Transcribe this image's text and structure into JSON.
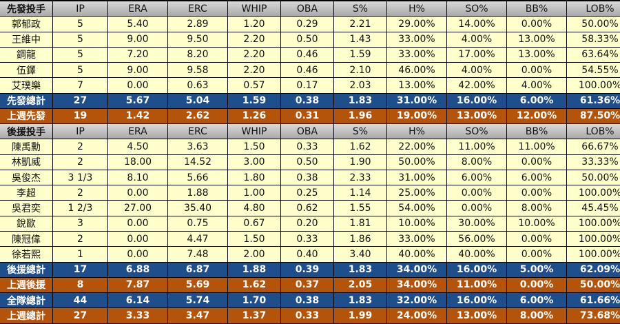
{
  "columns": [
    "IP",
    "ERA",
    "ERC",
    "WHIP",
    "OBA",
    "S%",
    "H%",
    "SO%",
    "BB%",
    "LOB%"
  ],
  "rows": [
    {
      "type": "header",
      "name": "先發投手",
      "values": [
        "IP",
        "ERA",
        "ERC",
        "WHIP",
        "OBA",
        "S%",
        "H%",
        "SO%",
        "BB%",
        "LOB%"
      ]
    },
    {
      "type": "data",
      "name": "郭郁政",
      "values": [
        "5",
        "5.40",
        "2.89",
        "1.20",
        "0.29",
        "2.21",
        "29.00%",
        "14.00%",
        "0.00%",
        "50.00%"
      ]
    },
    {
      "type": "data",
      "name": "王維中",
      "values": [
        "5",
        "9.00",
        "9.50",
        "2.20",
        "0.50",
        "1.43",
        "33.00%",
        "4.00%",
        "13.00%",
        "58.33%"
      ]
    },
    {
      "type": "data",
      "name": "鋼龍",
      "values": [
        "5",
        "7.20",
        "8.20",
        "2.20",
        "0.46",
        "1.59",
        "33.00%",
        "17.00%",
        "13.00%",
        "63.64%"
      ]
    },
    {
      "type": "data",
      "name": "伍鐸",
      "values": [
        "5",
        "9.00",
        "9.58",
        "2.20",
        "0.46",
        "2.10",
        "46.00%",
        "4.00%",
        "0.00%",
        "54.55%"
      ]
    },
    {
      "type": "data",
      "name": "艾璞樂",
      "values": [
        "7",
        "0.00",
        "0.63",
        "0.57",
        "0.17",
        "2.03",
        "13.00%",
        "42.00%",
        "4.00%",
        "100.00%"
      ]
    },
    {
      "type": "blue",
      "name": "先發總計",
      "values": [
        "27",
        "5.67",
        "5.04",
        "1.59",
        "0.38",
        "1.83",
        "31.00%",
        "16.00%",
        "6.00%",
        "61.36%"
      ]
    },
    {
      "type": "orange",
      "name": "上週先發",
      "values": [
        "19",
        "1.42",
        "2.62",
        "1.26",
        "0.31",
        "1.96",
        "19.00%",
        "13.00%",
        "12.00%",
        "87.50%"
      ]
    },
    {
      "type": "header",
      "name": "後援投手",
      "values": [
        "IP",
        "ERA",
        "ERC",
        "WHIP",
        "OBA",
        "S%",
        "H%",
        "SO%",
        "BB%",
        "LOB%"
      ]
    },
    {
      "type": "data",
      "name": "陳禹勳",
      "values": [
        "2",
        "4.50",
        "3.63",
        "1.50",
        "0.33",
        "1.62",
        "22.00%",
        "11.00%",
        "11.00%",
        "66.67%"
      ]
    },
    {
      "type": "data",
      "name": "林凱威",
      "values": [
        "2",
        "18.00",
        "14.52",
        "3.00",
        "0.50",
        "1.90",
        "50.00%",
        "8.00%",
        "0.00%",
        "33.33%"
      ]
    },
    {
      "type": "data",
      "name": "吳俊杰",
      "values": [
        "3 1/3",
        "8.10",
        "5.66",
        "1.80",
        "0.38",
        "2.33",
        "31.00%",
        "6.00%",
        "6.00%",
        "50.00%"
      ]
    },
    {
      "type": "data",
      "name": "李超",
      "values": [
        "2",
        "0.00",
        "1.88",
        "1.00",
        "0.25",
        "1.14",
        "25.00%",
        "0.00%",
        "0.00%",
        "100.00%"
      ]
    },
    {
      "type": "data",
      "name": "吳君奕",
      "values": [
        "1 2/3",
        "27.00",
        "35.40",
        "4.80",
        "0.62",
        "1.55",
        "54.00%",
        "0.00%",
        "8.00%",
        "45.45%"
      ]
    },
    {
      "type": "data",
      "name": "銳歐",
      "values": [
        "3",
        "0.00",
        "0.75",
        "0.67",
        "0.20",
        "1.81",
        "10.00%",
        "30.00%",
        "10.00%",
        "100.00%"
      ]
    },
    {
      "type": "data",
      "name": "陳冠偉",
      "values": [
        "2",
        "0.00",
        "4.47",
        "1.50",
        "0.33",
        "1.86",
        "33.00%",
        "56.00%",
        "0.00%",
        "100.00%"
      ]
    },
    {
      "type": "data",
      "name": "徐若熙",
      "values": [
        "1",
        "0.00",
        "7.48",
        "2.00",
        "0.40",
        "3.40",
        "40.00%",
        "40.00%",
        "0.00%",
        "100.00%"
      ]
    },
    {
      "type": "blue",
      "name": "後援總計",
      "values": [
        "17",
        "6.88",
        "6.87",
        "1.88",
        "0.39",
        "1.83",
        "34.00%",
        "16.00%",
        "5.00%",
        "62.09%"
      ]
    },
    {
      "type": "orange",
      "name": "上週後援",
      "values": [
        "8",
        "7.87",
        "5.69",
        "1.62",
        "0.37",
        "2.05",
        "34.00%",
        "11.00%",
        "0.00%",
        "50.00%"
      ]
    },
    {
      "type": "blue",
      "name": "全隊總計",
      "values": [
        "44",
        "6.14",
        "5.74",
        "1.70",
        "0.38",
        "1.83",
        "32.00%",
        "16.00%",
        "6.00%",
        "61.66%"
      ]
    },
    {
      "type": "orange",
      "name": "上週總計",
      "values": [
        "27",
        "3.33",
        "3.47",
        "1.37",
        "0.33",
        "1.99",
        "24.00%",
        "13.00%",
        "8.00%",
        "73.68%"
      ]
    }
  ],
  "colors": {
    "header": "#bfbfbf",
    "data": "#ffffcc",
    "total": "#1f4e8c",
    "last_week": "#b4540a"
  }
}
